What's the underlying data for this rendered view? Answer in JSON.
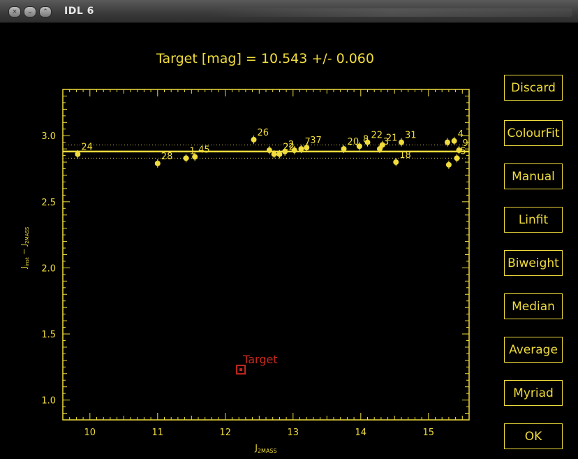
{
  "window": {
    "title": "IDL 6"
  },
  "header": {
    "text": "Target [mag] = 10.543 +/- 0.060"
  },
  "buttons": [
    {
      "key": "discard",
      "label": "Discard"
    },
    {
      "key": "colourfit",
      "label": "ColourFit"
    },
    {
      "key": "manual",
      "label": "Manual"
    },
    {
      "key": "linfit",
      "label": "Linfit"
    },
    {
      "key": "biweight",
      "label": "Biweight"
    },
    {
      "key": "median",
      "label": "Median"
    },
    {
      "key": "average",
      "label": "Average"
    },
    {
      "key": "myriad",
      "label": "Myriad"
    },
    {
      "key": "ok",
      "label": "OK"
    }
  ],
  "colors": {
    "plot": "#f0dc3c",
    "target": "#c8281e",
    "background": "#000000"
  },
  "chart_data": {
    "type": "scatter",
    "xlabel_main": "J",
    "xlabel_sub": "2MASS",
    "ylabel_main1": "J",
    "ylabel_sub1": "inst",
    "ylabel_mid": " − J",
    "ylabel_sub2": "2MASS",
    "xlim": [
      9.6,
      15.6
    ],
    "ylim": [
      0.85,
      3.35
    ],
    "xticks": [
      10,
      11,
      12,
      13,
      14,
      15
    ],
    "xtick_labels": [
      "10",
      "11",
      "12",
      "13",
      "14",
      "15"
    ],
    "yticks": [
      1.0,
      1.5,
      2.0,
      2.5,
      3.0
    ],
    "ytick_labels": [
      "1.0",
      "1.5",
      "2.0",
      "2.5",
      "3.0"
    ],
    "fit_line": 2.88,
    "fit_band": [
      2.83,
      2.93
    ],
    "points": [
      {
        "x": 9.82,
        "y": 2.86,
        "label": "24"
      },
      {
        "x": 11.0,
        "y": 2.79,
        "label": "28"
      },
      {
        "x": 11.42,
        "y": 2.83,
        "label": "1"
      },
      {
        "x": 11.55,
        "y": 2.84,
        "label": "45"
      },
      {
        "x": 12.42,
        "y": 2.97,
        "label": "26"
      },
      {
        "x": 12.65,
        "y": 2.89,
        "label": ""
      },
      {
        "x": 12.72,
        "y": 2.86,
        "label": ""
      },
      {
        "x": 12.8,
        "y": 2.86,
        "label": "22"
      },
      {
        "x": 12.88,
        "y": 2.88,
        "label": "2"
      },
      {
        "x": 13.02,
        "y": 2.89,
        "label": ""
      },
      {
        "x": 13.12,
        "y": 2.9,
        "label": "7"
      },
      {
        "x": 13.2,
        "y": 2.91,
        "label": "37"
      },
      {
        "x": 13.75,
        "y": 2.9,
        "label": "20"
      },
      {
        "x": 13.98,
        "y": 2.92,
        "label": "8"
      },
      {
        "x": 14.1,
        "y": 2.95,
        "label": "22"
      },
      {
        "x": 14.28,
        "y": 2.9,
        "label": "3"
      },
      {
        "x": 14.32,
        "y": 2.93,
        "label": "21"
      },
      {
        "x": 14.52,
        "y": 2.8,
        "label": "18"
      },
      {
        "x": 14.6,
        "y": 2.95,
        "label": "31"
      },
      {
        "x": 15.28,
        "y": 2.95,
        "label": ""
      },
      {
        "x": 15.3,
        "y": 2.78,
        "label": ""
      },
      {
        "x": 15.38,
        "y": 2.96,
        "label": "4"
      },
      {
        "x": 15.42,
        "y": 2.83,
        "label": "5"
      },
      {
        "x": 15.45,
        "y": 2.89,
        "label": "9"
      }
    ],
    "target": {
      "x": 12.23,
      "y": 1.23,
      "label": "Target"
    }
  }
}
